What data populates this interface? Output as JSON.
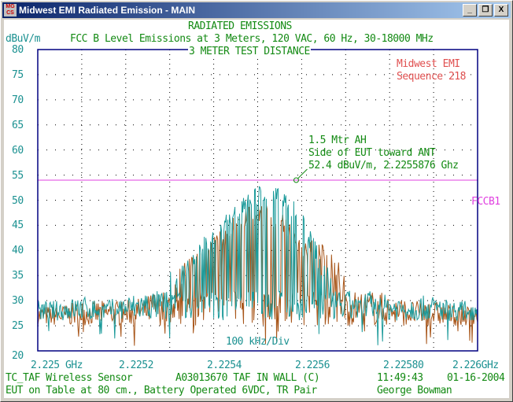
{
  "window": {
    "title": "Midwest EMI Radiated Emission - MAIN",
    "app_icon": "MG CS",
    "buttons": {
      "minimize": "_",
      "restore": "❐",
      "close": "X"
    }
  },
  "header": {
    "line1": "RADIATED EMISSIONS",
    "unit": "dBuV/m",
    "line2": "FCC B Level Emissions at 3 Meters, 120 VAC, 60 Hz, 30-18000 MHz",
    "distance": "3 METER TEST DISTANCE"
  },
  "lab": {
    "name": "Midwest EMI",
    "sequence": "Sequence 218"
  },
  "marker": {
    "line1": "1.5 Mtr AH",
    "line2": "Side of EUT toward ANT",
    "line3": "52.4 dBuV/m, 2.2255876 Ghz",
    "freq": 2.2255876,
    "level": 52.4
  },
  "footer": {
    "row1_left": "TC_TAF Wireless Sensor",
    "row1_mid": "A03013670 TAF IN WALL (C)",
    "time": "11:49:43",
    "date": "01-16-2004",
    "row2_left": "EUT on Table at 80 cm., Battery Operated 6VDC, TR Pair",
    "operator": "George Bowman"
  },
  "chart_data": {
    "type": "line",
    "title": "RADIATED EMISSIONS",
    "ylabel": "dBuV/m",
    "xlabel": "",
    "ylim": [
      20,
      80
    ],
    "xlim": [
      2.225,
      2.226
    ],
    "yticks": [
      "80",
      "75",
      "70",
      "65",
      "60",
      "55",
      "50",
      "45",
      "40",
      "35",
      "30",
      "25",
      "20"
    ],
    "xticks": [
      "2.225 GHz",
      "2.2252",
      "2.2254",
      "2.2256",
      "2.22580",
      "2.226GHz"
    ],
    "div_label": "100 kHz/Div",
    "grid": true,
    "limit": {
      "name": "FCCB1",
      "value": 54,
      "color": "#e040e0"
    },
    "envelope_x": [
      2.225,
      2.22505,
      2.2251,
      2.22515,
      2.2252,
      2.22525,
      2.2253,
      2.22535,
      2.2254,
      2.22545,
      2.2255,
      2.22555,
      2.2256,
      2.22565,
      2.2257,
      2.22575,
      2.2258,
      2.22585,
      2.2259,
      2.22595,
      2.226
    ],
    "series": [
      {
        "name": "trace-teal",
        "color": "#1b9a9a",
        "floor": 24,
        "peak_envelope": [
          30,
          30,
          31,
          30,
          31,
          32,
          36,
          40,
          45,
          50,
          53,
          53,
          48,
          38,
          34,
          32,
          31,
          31,
          31,
          30,
          30
        ]
      },
      {
        "name": "trace-brown",
        "color": "#a8561a",
        "floor": 23,
        "peak_envelope": [
          29,
          29,
          30,
          30,
          30,
          31,
          35,
          39,
          43,
          47,
          50,
          48,
          42,
          42,
          36,
          33,
          31,
          30,
          30,
          29,
          29
        ]
      }
    ]
  }
}
